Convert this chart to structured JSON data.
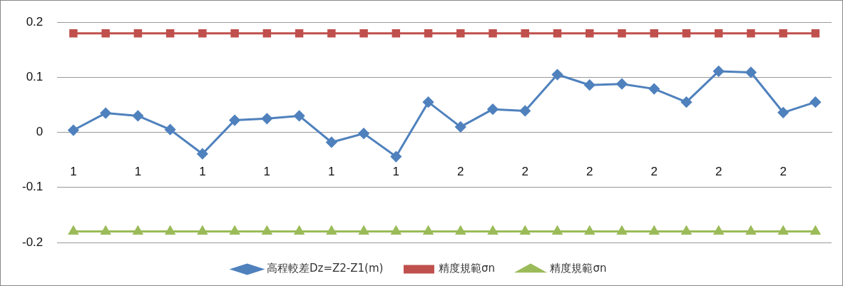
{
  "chart_data": {
    "type": "line",
    "categories": [
      "1",
      null,
      "1",
      null,
      "1",
      null,
      "1",
      null,
      "1",
      null,
      "1",
      null,
      "2",
      null,
      "2",
      null,
      "2",
      null,
      "2",
      null,
      "2",
      null,
      "2",
      null
    ],
    "series": [
      {
        "name": "高程較差Dz=Z2-Z1(m)",
        "color": "#4f81bd",
        "marker": "diamond",
        "values": [
          0.004,
          0.035,
          0.03,
          0.005,
          -0.039,
          0.022,
          0.025,
          0.03,
          -0.018,
          -0.002,
          -0.044,
          0.055,
          0.01,
          0.042,
          0.039,
          0.105,
          0.086,
          0.088,
          0.079,
          0.055,
          0.111,
          0.109,
          0.036,
          0.055
        ]
      },
      {
        "name": "精度規範σn",
        "color": "#c0504d",
        "marker": "square",
        "values": [
          0.18,
          0.18,
          0.18,
          0.18,
          0.18,
          0.18,
          0.18,
          0.18,
          0.18,
          0.18,
          0.18,
          0.18,
          0.18,
          0.18,
          0.18,
          0.18,
          0.18,
          0.18,
          0.18,
          0.18,
          0.18,
          0.18,
          0.18,
          0.18
        ]
      },
      {
        "name": "精度規範σn",
        "color": "#9bbb59",
        "marker": "triangle",
        "values": [
          -0.18,
          -0.18,
          -0.18,
          -0.18,
          -0.18,
          -0.18,
          -0.18,
          -0.18,
          -0.18,
          -0.18,
          -0.18,
          -0.18,
          -0.18,
          -0.18,
          -0.18,
          -0.18,
          -0.18,
          -0.18,
          -0.18,
          -0.18,
          -0.18,
          -0.18,
          -0.18,
          -0.18
        ]
      }
    ],
    "ylim": [
      -0.2,
      0.2
    ],
    "yticks": [
      -0.2,
      -0.1,
      0,
      0.1,
      0.2
    ],
    "grid": "y",
    "legend": "bottom",
    "line_style": "solid"
  }
}
